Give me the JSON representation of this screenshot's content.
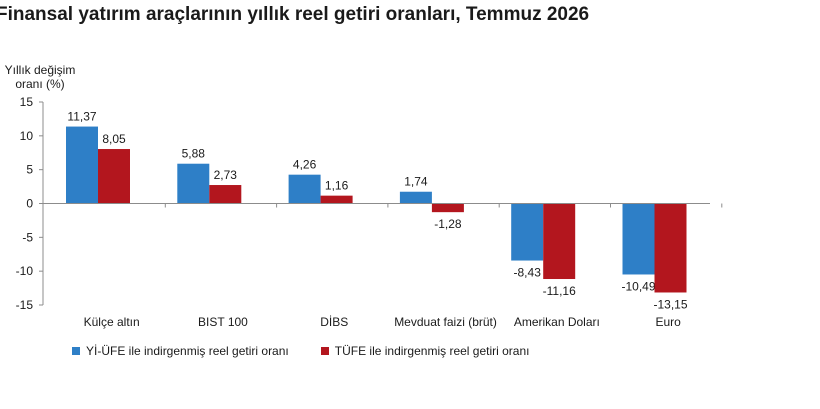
{
  "chart_data": {
    "type": "bar",
    "title": "Finansal yatırım araçlarının yıllık reel getiri oranları, Temmuz 2026",
    "ylabel": "Yıllık değişim oranı (%)",
    "ylim": [
      -15,
      15
    ],
    "yticks": [
      "15",
      "10",
      "5",
      "0",
      "-5",
      "-10",
      "-15"
    ],
    "grid": false,
    "legend_position": "bottom",
    "categories": [
      "Külçe altın",
      "BIST 100",
      "DİBS",
      "Mevduat faizi (brüt)",
      "Amerikan Doları",
      "Euro"
    ],
    "series": [
      {
        "name": "Yİ-ÜFE ile indirgenmiş reel getiri oranı",
        "color": "#2e7fc7",
        "values": [
          11.37,
          5.88,
          4.26,
          1.74,
          -8.43,
          -10.49
        ],
        "labels": [
          "11,37",
          "5,88",
          "4,26",
          "1,74",
          "-8,43",
          "-10,49"
        ]
      },
      {
        "name": "TÜFE ile indirgenmiş reel getiri oranı",
        "color": "#b3161e",
        "values": [
          8.05,
          2.73,
          1.16,
          -1.28,
          -11.16,
          -13.15
        ],
        "labels": [
          "8,05",
          "2,73",
          "1,16",
          "-1,28",
          "-11,16",
          "-13,15"
        ]
      }
    ]
  }
}
